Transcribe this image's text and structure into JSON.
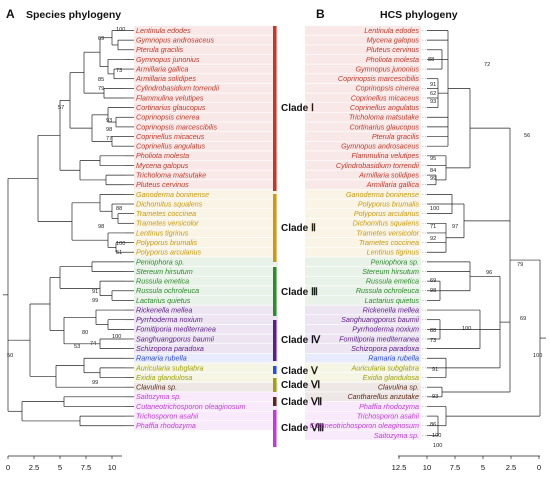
{
  "panels": {
    "a": {
      "letter": "A",
      "title": "Species phylogeny"
    },
    "b": {
      "letter": "B",
      "title": "HCS phylogeny"
    }
  },
  "colors": {
    "I": "#c0392b",
    "II": "#c99a12",
    "III": "#2e8b2e",
    "IV": "#5b1f86",
    "V": "#2a4bd7",
    "VI": "#a0a010",
    "VII": "#5c2a1a",
    "VIII": "#c03cd8"
  },
  "clades": [
    {
      "key": "I",
      "label": "Clade Ⅰ"
    },
    {
      "key": "II",
      "label": "Clade Ⅱ"
    },
    {
      "key": "III",
      "label": "Clade Ⅲ"
    },
    {
      "key": "IV",
      "label": "Clade Ⅳ"
    },
    {
      "key": "V",
      "label": "Clade Ⅴ"
    },
    {
      "key": "VI",
      "label": "Clade Ⅵ"
    },
    {
      "key": "VII",
      "label": "Clade Ⅶ"
    },
    {
      "key": "VIII",
      "label": "Clade Ⅷ"
    }
  ],
  "species_a": [
    {
      "name": "Lentinula edodes",
      "clade": "I"
    },
    {
      "name": "Gymnopus androsaceus",
      "clade": "I"
    },
    {
      "name": "Pterula gracilis",
      "clade": "I"
    },
    {
      "name": "Gymnopus junonius",
      "clade": "I"
    },
    {
      "name": "Armillaria gallica",
      "clade": "I"
    },
    {
      "name": "Armillaria solidipes",
      "clade": "I"
    },
    {
      "name": "Cylindrobasidium torrendii",
      "clade": "I"
    },
    {
      "name": "Flammulina velutipes",
      "clade": "I"
    },
    {
      "name": "Cortinarius glaucopus",
      "clade": "I"
    },
    {
      "name": "Coprinopsis cinerea",
      "clade": "I"
    },
    {
      "name": "Coprinopsis marcescibilis",
      "clade": "I"
    },
    {
      "name": "Coprinellus micaceus",
      "clade": "I"
    },
    {
      "name": "Coprinellus angulatus",
      "clade": "I"
    },
    {
      "name": "Pholiota molesta",
      "clade": "I"
    },
    {
      "name": "Mycena galopus",
      "clade": "I"
    },
    {
      "name": "Tricholoma matsutake",
      "clade": "I"
    },
    {
      "name": "Pluteus cervinus",
      "clade": "I"
    },
    {
      "name": "Ganoderma boninense",
      "clade": "II"
    },
    {
      "name": "Dichomitus squalens",
      "clade": "II"
    },
    {
      "name": "Trametes coccinea",
      "clade": "II"
    },
    {
      "name": "Trametes versicolor",
      "clade": "II"
    },
    {
      "name": "Lentinus tigrinus",
      "clade": "II"
    },
    {
      "name": "Polyporus brumalis",
      "clade": "II"
    },
    {
      "name": "Polyporus arcularius",
      "clade": "II"
    },
    {
      "name": "Peniophora sp.",
      "clade": "III"
    },
    {
      "name": "Stereum hirsutum",
      "clade": "III"
    },
    {
      "name": "Russula emetica",
      "clade": "III"
    },
    {
      "name": "Russula ochroleuca",
      "clade": "III"
    },
    {
      "name": "Lactarius quietus",
      "clade": "III"
    },
    {
      "name": "Rickenella mellea",
      "clade": "IV"
    },
    {
      "name": "Pyrrhoderma noxium",
      "clade": "IV"
    },
    {
      "name": "Fomitiporia mediterranea",
      "clade": "IV"
    },
    {
      "name": "Sanghuangporus baumii",
      "clade": "IV"
    },
    {
      "name": "Schizopora paradoxa",
      "clade": "IV"
    },
    {
      "name": "Ramaria rubella",
      "clade": "V"
    },
    {
      "name": "Auricularia subglabra",
      "clade": "VI"
    },
    {
      "name": "Exidia glandulosa",
      "clade": "VI"
    },
    {
      "name": "Clavulina sp.",
      "clade": "VII"
    },
    {
      "name": "Saitozyma sp.",
      "clade": "VIII"
    },
    {
      "name": "Cutaneotrichosporon oleaginosum",
      "clade": "VIII"
    },
    {
      "name": "Trichosporon asahii",
      "clade": "VIII"
    },
    {
      "name": "Phaffia rhodozyma",
      "clade": "VIII"
    }
  ],
  "species_b": [
    {
      "name": "Lentinula edodes",
      "clade": "I"
    },
    {
      "name": "Mycena galopus",
      "clade": "I"
    },
    {
      "name": "Pluteus cervinus",
      "clade": "I"
    },
    {
      "name": "Pholiota molesta",
      "clade": "I"
    },
    {
      "name": "Gymnopus junonius",
      "clade": "I"
    },
    {
      "name": "Coprinopsis marcescibilis",
      "clade": "I"
    },
    {
      "name": "Coprinopsis cinerea",
      "clade": "I"
    },
    {
      "name": "Coprinellus micaceus",
      "clade": "I"
    },
    {
      "name": "Coprinellus angulatus",
      "clade": "I"
    },
    {
      "name": "Tricholoma matsutake",
      "clade": "I"
    },
    {
      "name": "Cortinarius glaucopus",
      "clade": "I"
    },
    {
      "name": "Pterula gracilis",
      "clade": "I"
    },
    {
      "name": "Gymnopus androsaceus",
      "clade": "I"
    },
    {
      "name": "Flammulina velutipes",
      "clade": "I"
    },
    {
      "name": "Cylindrobasidium torrendii",
      "clade": "I"
    },
    {
      "name": "Armillaria solidipes",
      "clade": "I"
    },
    {
      "name": "Armillaria gallica",
      "clade": "I"
    },
    {
      "name": "Ganoderma boninense",
      "clade": "II"
    },
    {
      "name": "Polyporus brumalis",
      "clade": "II"
    },
    {
      "name": "Polyporus arcularius",
      "clade": "II"
    },
    {
      "name": "Dichomitus squalens",
      "clade": "II"
    },
    {
      "name": "Trametes versicolor",
      "clade": "II"
    },
    {
      "name": "Trametes coccinea",
      "clade": "II"
    },
    {
      "name": "Lentinus tigrinus",
      "clade": "II"
    },
    {
      "name": "Peniophora sp.",
      "clade": "III"
    },
    {
      "name": "Stereum hirsutum",
      "clade": "III"
    },
    {
      "name": "Russula emetica",
      "clade": "III"
    },
    {
      "name": "Russula ochroleuca",
      "clade": "III"
    },
    {
      "name": "Lactarius quietus",
      "clade": "III"
    },
    {
      "name": "Rickenella mellea",
      "clade": "IV"
    },
    {
      "name": "Sanghuangporus baumii",
      "clade": "IV"
    },
    {
      "name": "Pyrrhoderma noxium",
      "clade": "IV"
    },
    {
      "name": "Fomitiporia mediterranea",
      "clade": "IV"
    },
    {
      "name": "Schizopora paradoxa",
      "clade": "IV"
    },
    {
      "name": "Ramaria rubella",
      "clade": "V"
    },
    {
      "name": "Auricularia subglabra",
      "clade": "VI"
    },
    {
      "name": "Exidia glandulosa",
      "clade": "VI"
    },
    {
      "name": "Clavulina sp.",
      "clade": "VII"
    },
    {
      "name": "Cantharellus anzutake",
      "clade": "VII"
    },
    {
      "name": "Phaffia rhodozyma",
      "clade": "VIII"
    },
    {
      "name": "Trichosporon asahii",
      "clade": "VIII"
    },
    {
      "name": "Cutaneotrichosporon oleaginosum",
      "clade": "VIII"
    },
    {
      "name": "Saitozyma sp.",
      "clade": "VIII"
    }
  ],
  "support_a": [
    "100",
    "69",
    "73",
    "85",
    "79",
    "57",
    "93",
    "98",
    "77",
    "88",
    "98",
    "100",
    "51",
    "91",
    "99",
    "100",
    "80",
    "74",
    "53",
    "50",
    "99"
  ],
  "support_b": [
    "72",
    "88",
    "91",
    "62",
    "93",
    "56",
    "95",
    "84",
    "99",
    "100",
    "71",
    "92",
    "97",
    "96",
    "69",
    "98",
    "79",
    "88",
    "73",
    "100",
    "100",
    "91",
    "93",
    "86",
    "100",
    "69",
    "100"
  ],
  "axis_a": {
    "ticks": [
      "0",
      "2.5",
      "5",
      "7.5",
      "10"
    ]
  },
  "axis_b": {
    "ticks": [
      "12.5",
      "10",
      "7.5",
      "5",
      "2.5",
      "0"
    ]
  }
}
